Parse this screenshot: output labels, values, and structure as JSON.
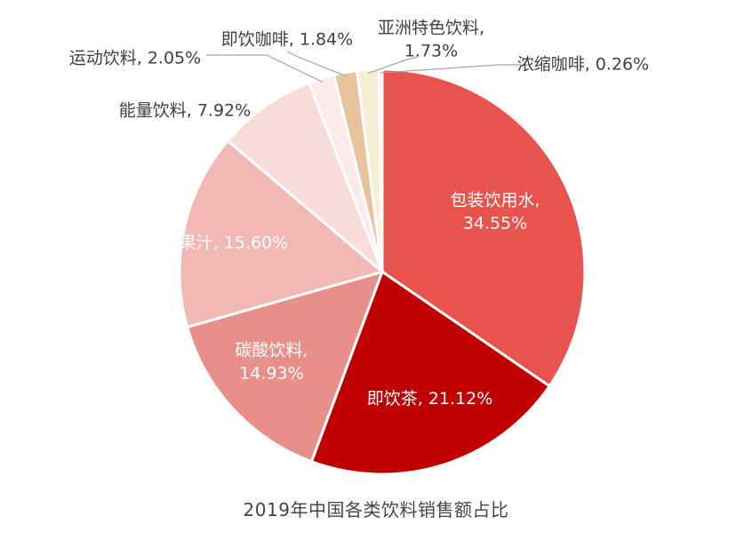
{
  "chart_data": {
    "type": "pie",
    "caption": "2019年中国各类饮料销售额占比",
    "slices": [
      {
        "label": "包装饮用水",
        "value": 34.55,
        "percent_text": "34.55%",
        "color": "#e8534d",
        "label_color": "#ffffff",
        "label_lines": [
          "包装饮用水,",
          "34.55%"
        ]
      },
      {
        "label": "即饮茶",
        "value": 21.12,
        "percent_text": "21.12%",
        "color": "#c00000",
        "label_color": "#ffffff",
        "label_lines": [
          "即饮茶, 21.12%"
        ]
      },
      {
        "label": "碳酸饮料",
        "value": 14.93,
        "percent_text": "14.93%",
        "color": "#e88f8a",
        "label_color": "#ffffff",
        "label_lines": [
          "碳酸饮料,",
          "14.93%"
        ]
      },
      {
        "label": "果汁",
        "value": 15.6,
        "percent_text": "15.60%",
        "color": "#f2b8b3",
        "label_color": "#ffffff",
        "label_lines": [
          "果汁, 15.60%"
        ]
      },
      {
        "label": "能量饮料",
        "value": 7.92,
        "percent_text": "7.92%",
        "color": "#f7dcd9",
        "label_color": "#404040",
        "label_lines": [
          "能量饮料, 7.92%"
        ]
      },
      {
        "label": "运动饮料",
        "value": 2.05,
        "percent_text": "2.05%",
        "color": "#faebe8",
        "label_color": "#404040",
        "label_lines": [
          "运动饮料, 2.05%"
        ]
      },
      {
        "label": "即饮咖啡",
        "value": 1.84,
        "percent_text": "1.84%",
        "color": "#e8c39e",
        "label_color": "#404040",
        "label_lines": [
          "即饮咖啡, 1.84%"
        ]
      },
      {
        "label": "亚洲特色饮料",
        "value": 1.73,
        "percent_text": "1.73%",
        "color": "#f5efd6",
        "label_color": "#404040",
        "label_lines": [
          "亚洲特色饮料,",
          "1.73%"
        ]
      },
      {
        "label": "浓缩咖啡",
        "value": 0.26,
        "percent_text": "0.26%",
        "color": "#cfe0c3",
        "label_color": "#404040",
        "label_lines": [
          "浓缩咖啡, 0.26%"
        ]
      }
    ]
  }
}
